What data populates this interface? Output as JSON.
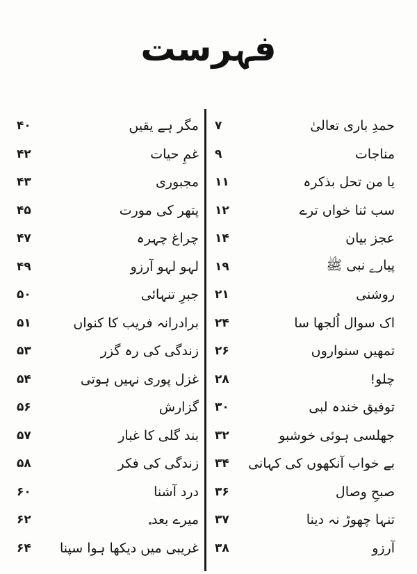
{
  "page": {
    "title": "فہرست",
    "paper_color": "#fdfdfb",
    "ink_color": "#161616",
    "columns": {
      "right": {
        "entries": [
          {
            "title": "حمدِ باری تعالیٰ",
            "page": "۷"
          },
          {
            "title": "مناجات",
            "page": "۹"
          },
          {
            "title": "یا من تحل بذکرہ",
            "page": "۱۱"
          },
          {
            "title": "سب ثنا خواں ترے",
            "page": "۱۲"
          },
          {
            "title": "عجز بیان",
            "page": "۱۴"
          },
          {
            "title": "پیارے نبی ﷺ",
            "page": "۱۹"
          },
          {
            "title": "روشنی",
            "page": "۲۱"
          },
          {
            "title": "اک سوال اُلجھا سا",
            "page": "۲۴"
          },
          {
            "title": "تمھیں سنواروں",
            "page": "۲۶"
          },
          {
            "title": "چلو!",
            "page": "۲۸"
          },
          {
            "title": "توفیق خندہ لبی",
            "page": "۳۰"
          },
          {
            "title": "جھلسی ہوئی خوشبو",
            "page": "۳۲"
          },
          {
            "title": "بے خواب آنکھوں کی کہانی",
            "page": "۳۴"
          },
          {
            "title": "صبحِ وصال",
            "page": "۳۶"
          },
          {
            "title": "تنہا چھوڑ نہ دینا",
            "page": "۳۷"
          },
          {
            "title": "آرزو",
            "page": "۳۸"
          }
        ]
      },
      "left": {
        "entries": [
          {
            "title": "مگر ہے یقیں",
            "page": "۴۰"
          },
          {
            "title": "غمِ حیات",
            "page": "۴۲"
          },
          {
            "title": "مجبوری",
            "page": "۴۳"
          },
          {
            "title": "پتھر کی مورت",
            "page": "۴۵"
          },
          {
            "title": "چراغ چہرہ",
            "page": "۴۷"
          },
          {
            "title": "لہو لہو آرزو",
            "page": "۴۹"
          },
          {
            "title": "جبرِ تنہائی",
            "page": "۵۰"
          },
          {
            "title": "برادرانہ فریب کا کنواں",
            "page": "۵۱"
          },
          {
            "title": "زندگی کی رہ گزر",
            "page": "۵۳"
          },
          {
            "title": "غزل پوری نہیں ہوتی",
            "page": "۵۴"
          },
          {
            "title": "گزارش",
            "page": "۵۶"
          },
          {
            "title": "بند گلی کا غبار",
            "page": "۵۷"
          },
          {
            "title": "زندگی کی فکر",
            "page": "۵۸"
          },
          {
            "title": "درد آشنا",
            "page": "۶۰"
          },
          {
            "title": "میرے بعد",
            "page": "۶۲"
          },
          {
            "title": "غریبی میں دیکھا ہوا سپنا",
            "page": "۶۴"
          }
        ]
      }
    }
  }
}
